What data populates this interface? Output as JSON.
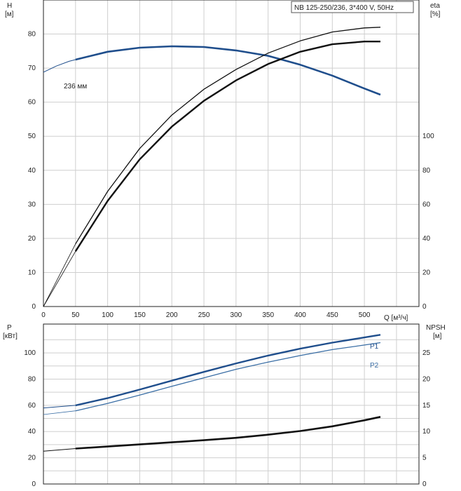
{
  "chart_data": {
    "type": "line",
    "title": "NB 125-250/236, 3*400 V, 50Hz",
    "xlabel": "Q [м³/ч]",
    "xlim": [
      0,
      585
    ],
    "x_ticks": [
      0,
      50,
      100,
      150,
      200,
      250,
      300,
      350,
      400,
      450,
      500
    ],
    "grid": true,
    "colors": {
      "pump_curve": "#1f4e8c",
      "p2_curve": "#3a6ea5",
      "black": "#111111",
      "grid": "#cfcfcf"
    },
    "top_panel": {
      "left_axis": {
        "label_line1": "H",
        "label_line2": "[м]",
        "ticks": [
          0,
          10,
          20,
          30,
          40,
          50,
          60,
          70,
          80
        ],
        "ylim": [
          0,
          90
        ]
      },
      "right_axis": {
        "label_line1": "eta",
        "label_line2": "[%]",
        "ticks": [
          0,
          20,
          40,
          60,
          80,
          100
        ]
      },
      "series": [
        {
          "id": "H",
          "label": "236 мм",
          "color": "#1f4e8c",
          "x": [
            50,
            100,
            150,
            200,
            250,
            300,
            350,
            400,
            450,
            500,
            525
          ],
          "y": [
            72.5,
            74.8,
            76.0,
            76.4,
            76.2,
            75.2,
            73.6,
            71.0,
            67.8,
            64.0,
            62.2
          ],
          "x_ext": [
            0,
            20,
            40,
            50
          ],
          "y_ext": [
            68.8,
            70.6,
            72.0,
            72.5
          ]
        },
        {
          "id": "eta_thin",
          "color": "#111111",
          "x": [
            50,
            100,
            150,
            200,
            250,
            300,
            350,
            400,
            450,
            500,
            525
          ],
          "y": [
            18.4,
            33.8,
            46.4,
            56.2,
            63.8,
            69.6,
            74.4,
            78.0,
            80.6,
            81.8,
            82.0
          ],
          "x_ext": [
            0,
            50
          ],
          "y_ext": [
            0,
            18.4
          ]
        },
        {
          "id": "eta_thick",
          "color": "#111111",
          "x": [
            50,
            100,
            150,
            200,
            250,
            300,
            350,
            400,
            450,
            500,
            525
          ],
          "y": [
            16.2,
            31.0,
            43.2,
            52.8,
            60.4,
            66.4,
            71.2,
            74.8,
            77.0,
            77.8,
            77.8
          ],
          "x_ext": [
            0,
            50
          ],
          "y_ext": [
            0,
            16.2
          ]
        }
      ]
    },
    "bottom_panel": {
      "left_axis": {
        "label_line1": "P",
        "label_line2": "[кВт]",
        "ticks": [
          0,
          20,
          40,
          60,
          80,
          100
        ],
        "ylim": [
          0,
          122
        ]
      },
      "right_axis": {
        "label_line1": "NPSH",
        "label_line2": "[м]",
        "ticks": [
          0,
          5,
          10,
          15,
          20,
          25
        ]
      },
      "series": [
        {
          "id": "P1",
          "label": "P1",
          "color": "#1f4e8c",
          "x": [
            50,
            100,
            150,
            200,
            250,
            300,
            350,
            400,
            450,
            500,
            525
          ],
          "y": [
            60.0,
            65.5,
            72.0,
            78.8,
            85.5,
            92.0,
            98.0,
            103.2,
            107.8,
            111.8,
            113.8
          ],
          "x_ext": [
            0,
            50
          ],
          "y_ext": [
            58.0,
            60.0
          ]
        },
        {
          "id": "P2",
          "label": "P2",
          "color": "#3a6ea5",
          "x": [
            50,
            100,
            150,
            200,
            250,
            300,
            350,
            400,
            450,
            500,
            525
          ],
          "y": [
            55.8,
            61.5,
            67.8,
            74.5,
            81.0,
            87.5,
            93.0,
            98.0,
            102.5,
            106.0,
            107.8
          ],
          "x_ext": [
            0,
            50
          ],
          "y_ext": [
            53.0,
            55.8
          ]
        },
        {
          "id": "NPSH",
          "color": "#111111",
          "x": [
            50,
            100,
            150,
            200,
            250,
            300,
            350,
            400,
            450,
            500,
            525
          ],
          "y": [
            27.0,
            28.6,
            30.2,
            31.8,
            33.4,
            35.2,
            37.6,
            40.4,
            44.0,
            48.6,
            51.2
          ],
          "x_ext": [
            0,
            50
          ],
          "y_ext": [
            25.0,
            27.0
          ]
        }
      ]
    }
  }
}
